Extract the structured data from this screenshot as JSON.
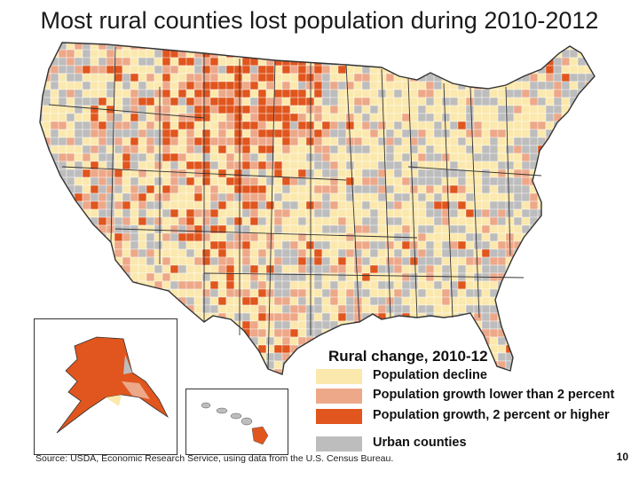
{
  "title": "Most rural counties lost population during 2010-2012",
  "legend": {
    "title": "Rural change, 2010-12",
    "items": [
      {
        "label": "Population decline",
        "color": "#fbe8ad",
        "category": "decline"
      },
      {
        "label": "Population growth lower than 2 percent",
        "color": "#eda889",
        "category": "growth-low"
      },
      {
        "label": "Population growth, 2 percent or higher",
        "color": "#e0561e",
        "category": "growth-high"
      },
      {
        "label": "Urban counties",
        "color": "#bdbdbd",
        "category": "urban"
      }
    ]
  },
  "colors": {
    "decline": "#fbe8ad",
    "growth_low": "#eda889",
    "growth_high": "#e0561e",
    "urban": "#bdbdbd",
    "state_border": "#333333",
    "county_border": "#ffffff"
  },
  "source": "Source: USDA, Economic Research Service, using data from the U.S. Census Bureau.",
  "page_number": "10"
}
